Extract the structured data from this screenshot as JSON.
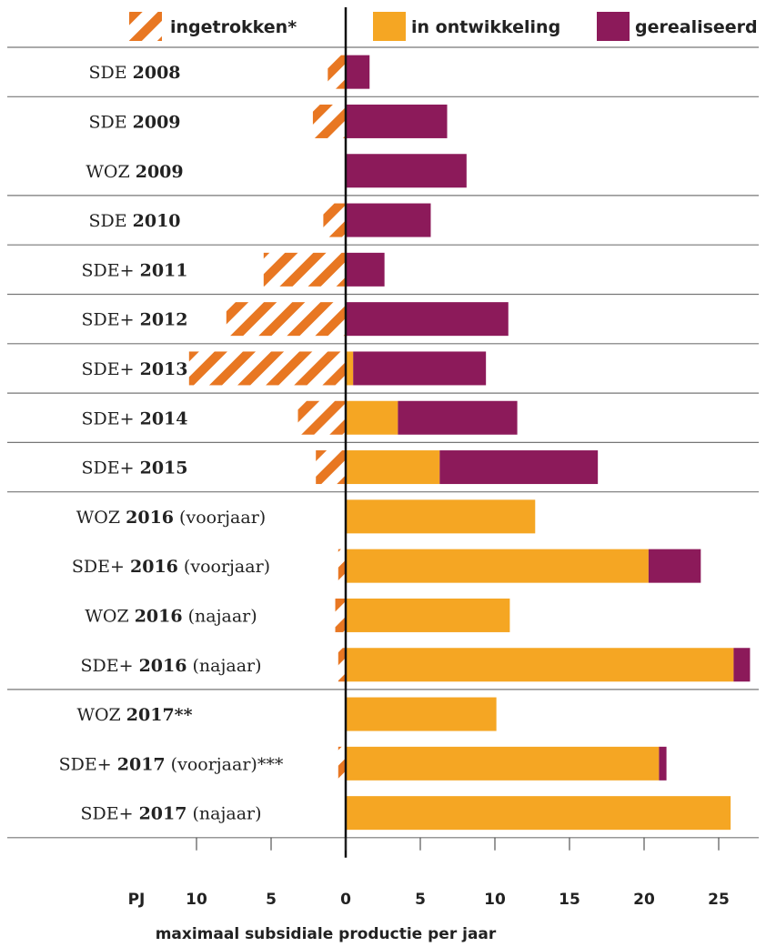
{
  "chart_data": {
    "type": "bar",
    "orientation": "horizontal",
    "stacked": true,
    "xlabel": "maximaal subsidiale productie per jaar",
    "unit_label": "PJ",
    "xlim": [
      -10.5,
      27.5
    ],
    "x_ticks": [
      {
        "value": -10,
        "label": "10"
      },
      {
        "value": -5,
        "label": "5"
      },
      {
        "value": 0,
        "label": "0"
      },
      {
        "value": 5,
        "label": "5"
      },
      {
        "value": 10,
        "label": "10"
      },
      {
        "value": 15,
        "label": "15"
      },
      {
        "value": 20,
        "label": "20"
      },
      {
        "value": 25,
        "label": "25"
      }
    ],
    "legend_position": "top",
    "series": [
      {
        "name": "ingetrokken*",
        "color": "#e87722",
        "pattern": "hatched",
        "direction": "negative",
        "values": [
          1.2,
          2.2,
          0,
          1.5,
          5.5,
          8,
          10.5,
          3.2,
          2,
          0,
          0.5,
          0.7,
          0.5,
          0,
          0.5,
          0
        ]
      },
      {
        "name": "in ontwikkeling",
        "color": "#f5a623",
        "values": [
          0,
          0,
          0,
          0,
          0,
          0,
          0.5,
          3.5,
          6.3,
          12.7,
          20.3,
          11,
          26,
          10.1,
          21,
          25.8
        ]
      },
      {
        "name": "gerealiseerd",
        "color": "#8c1a5a",
        "values": [
          1.6,
          6.8,
          8.1,
          5.7,
          2.6,
          10.9,
          8.9,
          8,
          10.6,
          0,
          3.5,
          0,
          1.1,
          0,
          0.5,
          0
        ]
      }
    ],
    "categories": [
      {
        "prefix": "SDE",
        "year": "2008",
        "suffix": ""
      },
      {
        "prefix": "SDE",
        "year": "2009",
        "suffix": ""
      },
      {
        "prefix": "WOZ",
        "year": "2009",
        "suffix": ""
      },
      {
        "prefix": "SDE",
        "year": "2010",
        "suffix": ""
      },
      {
        "prefix": "SDE+",
        "year": "2011",
        "suffix": ""
      },
      {
        "prefix": "SDE+",
        "year": "2012",
        "suffix": ""
      },
      {
        "prefix": "SDE+",
        "year": "2013",
        "suffix": ""
      },
      {
        "prefix": "SDE+",
        "year": "2014",
        "suffix": ""
      },
      {
        "prefix": "SDE+",
        "year": "2015",
        "suffix": ""
      },
      {
        "prefix": "WOZ",
        "year": "2016",
        "suffix": "(voorjaar)"
      },
      {
        "prefix": "SDE+",
        "year": "2016",
        "suffix": "(voorjaar)"
      },
      {
        "prefix": "WOZ",
        "year": "2016",
        "suffix": "(najaar)"
      },
      {
        "prefix": "SDE+",
        "year": "2016",
        "suffix": "(najaar)"
      },
      {
        "prefix": "WOZ",
        "year": "2017**",
        "suffix": ""
      },
      {
        "prefix": "SDE+",
        "year": "2017",
        "suffix": "(voorjaar)***"
      },
      {
        "prefix": "SDE+",
        "year": "2017",
        "suffix": "(najaar)"
      }
    ],
    "group_separators_after": [
      0,
      2,
      3,
      4,
      5,
      6,
      7,
      8,
      12
    ],
    "grid": false
  }
}
